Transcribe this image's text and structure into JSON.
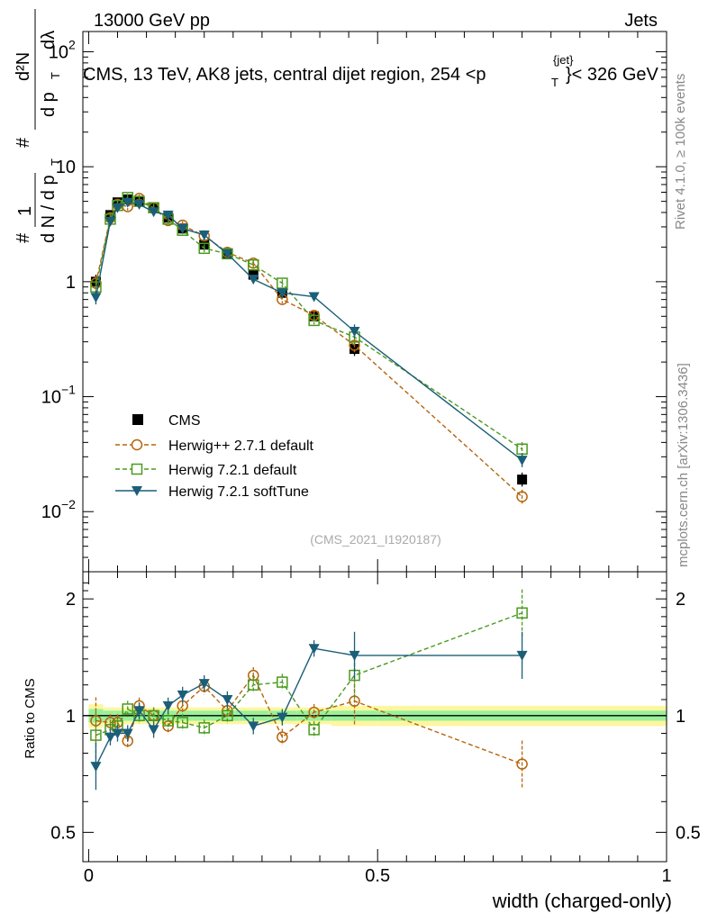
{
  "header": {
    "left": "13000 GeV pp",
    "right": "Jets"
  },
  "side": {
    "rivet": "Rivet 4.1.0, ≥ 100k events",
    "mcplots": "mcplots.cern.ch [arXiv:1306.3436]"
  },
  "ylabel_top": {
    "hash1": "#",
    "n1": "1",
    "den": "d N / d p",
    "sub_t": "T",
    "hash2": "#",
    "num2": "d²N",
    "den2": "d p",
    "sub2": "T",
    "dl": "dλ"
  },
  "chart_data": [
    {
      "type": "line",
      "title": "CMS, 13 TeV, AK8 jets, central dijet region, 254 <p",
      "title_sup": "{jet}",
      "title_sub": "T",
      "title_end": "}< 326 GeV",
      "watermark": "(CMS_2021_I1920187)",
      "yscale": "log",
      "ylim": [
        0.003,
        150
      ],
      "xlim": [
        -0.01,
        1.0
      ],
      "yticks": [
        {
          "v": 100,
          "base": "10",
          "exp": "2"
        },
        {
          "v": 10,
          "label": "10"
        },
        {
          "v": 1,
          "label": "1"
        },
        {
          "v": 0.1,
          "base": "10",
          "exp": "−1"
        },
        {
          "v": 0.01,
          "base": "10",
          "exp": "−2"
        }
      ],
      "legend": [
        {
          "name": "CMS",
          "color": "#000000"
        },
        {
          "name": "Herwig++ 2.7.1 default",
          "color": "#b5650d"
        },
        {
          "name": "Herwig 7.2.1 default",
          "color": "#4a9a1e"
        },
        {
          "name": "Herwig 7.2.1 softTune",
          "color": "#1b5e78"
        }
      ],
      "legend_position": "lower-left",
      "x": [
        0.0125,
        0.0375,
        0.05,
        0.0675,
        0.0875,
        0.1125,
        0.1375,
        0.1625,
        0.2,
        0.24,
        0.285,
        0.335,
        0.39,
        0.46,
        0.75
      ],
      "series": [
        {
          "name": "CMS",
          "style": "square",
          "values": [
            1.0,
            3.8,
            4.9,
            5.2,
            5.0,
            4.4,
            3.6,
            2.9,
            2.1,
            1.75,
            1.15,
            0.8,
            0.5,
            0.26,
            0.019
          ]
        },
        {
          "name": "Herwig++ 2.7.1 default",
          "style": "circle",
          "values": [
            0.97,
            3.6,
            4.7,
            4.5,
            5.3,
            4.4,
            3.4,
            3.1,
            2.5,
            1.8,
            1.45,
            0.7,
            0.51,
            0.28,
            0.0135
          ]
        },
        {
          "name": "Herwig 7.2.1 default",
          "style": "open-square",
          "values": [
            0.9,
            3.5,
            4.6,
            5.4,
            5.0,
            4.4,
            3.5,
            2.8,
            1.95,
            1.75,
            1.4,
            0.97,
            0.46,
            0.33,
            0.035
          ]
        },
        {
          "name": "Herwig 7.2.1 softTune",
          "style": "triangle",
          "values": [
            0.73,
            3.35,
            4.4,
            4.9,
            4.7,
            4.05,
            3.8,
            2.9,
            2.55,
            1.75,
            1.05,
            0.8,
            0.74,
            0.37,
            0.028
          ]
        }
      ]
    },
    {
      "type": "line",
      "ylabel": "Ratio to CMS",
      "xlabel": "width (charged-only)",
      "yscale": "log",
      "ylim": [
        0.42,
        2.35
      ],
      "xlim": [
        -0.01,
        1.0
      ],
      "yticks": [
        {
          "v": 2,
          "label": "2"
        },
        {
          "v": 1,
          "label": "1"
        },
        {
          "v": 0.5,
          "label": "0.5"
        }
      ],
      "xticks": [
        {
          "v": 0,
          "label": "0"
        },
        {
          "v": 0.5,
          "label": "0.5"
        },
        {
          "v": 1,
          "label": "1"
        }
      ],
      "x": [
        0.0125,
        0.0375,
        0.05,
        0.0675,
        0.0875,
        0.1125,
        0.1375,
        0.1625,
        0.2,
        0.24,
        0.285,
        0.335,
        0.39,
        0.46,
        0.75
      ],
      "series": [
        {
          "name": "Herwig++ 2.7.1 default",
          "style": "circle",
          "values": [
            0.97,
            0.96,
            0.96,
            0.86,
            1.06,
            1.0,
            0.94,
            1.06,
            1.19,
            1.03,
            1.27,
            0.88,
            1.02,
            1.09,
            0.75
          ]
        },
        {
          "name": "Herwig 7.2.1 default",
          "style": "open-square",
          "values": [
            0.89,
            0.92,
            0.94,
            1.04,
            1.0,
            1.0,
            0.97,
            0.96,
            0.93,
            1.0,
            1.2,
            1.22,
            0.92,
            1.27,
            1.84
          ]
        },
        {
          "name": "Herwig 7.2.1 softTune",
          "style": "triangle",
          "values": [
            0.74,
            0.88,
            0.9,
            0.9,
            1.03,
            0.92,
            1.06,
            1.13,
            1.21,
            1.1,
            0.94,
            0.99,
            1.49,
            1.43,
            1.43
          ]
        }
      ]
    }
  ]
}
